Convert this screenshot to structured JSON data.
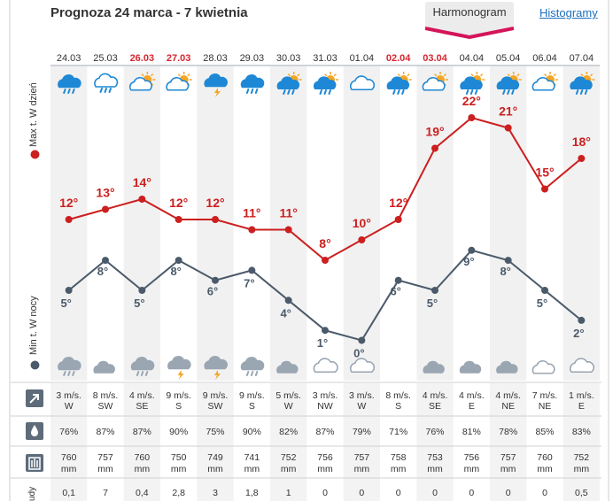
{
  "title": "Prognoza 24 marca - 7 kwietnia",
  "tabs": {
    "schedule": "Harmonogram",
    "histogram": "Histogramy"
  },
  "labels": {
    "max_day": "Max t. W dzień",
    "min_night": "Min t. W nocy",
    "precip_partial": "udy"
  },
  "colors": {
    "max": "#cc1f1f",
    "min": "#4b5a6a",
    "weekend": "#d6262f",
    "icon_blue": "#1e88d6",
    "icon_grey": "#9aa6b2",
    "sun": "#f5a623"
  },
  "chart_data": {
    "type": "line",
    "x": [
      "24.03",
      "25.03",
      "26.03",
      "27.03",
      "28.03",
      "29.03",
      "30.03",
      "31.03",
      "01.04",
      "02.04",
      "03.04",
      "04.04",
      "05.04",
      "06.04",
      "07.04"
    ],
    "weekend_dates": [
      "26.03",
      "27.03",
      "02.04",
      "03.04"
    ],
    "series": [
      {
        "name": "Max t. W dzień",
        "values": [
          12,
          13,
          14,
          12,
          12,
          11,
          11,
          8,
          10,
          12,
          19,
          22,
          21,
          15,
          18
        ]
      },
      {
        "name": "Min t. W nocy",
        "values": [
          5,
          8,
          5,
          8,
          6,
          7,
          4,
          1,
          0,
          6,
          5,
          9,
          8,
          5,
          2
        ]
      }
    ],
    "ylim": [
      -1,
      24
    ],
    "day_icons": [
      "cloud-rain",
      "cloud-drizzle",
      "partly-sunny",
      "partly-sunny",
      "cloud-storm",
      "cloud-rain",
      "partly-sunny-rain",
      "partly-sunny-rain",
      "cloud-outline",
      "partly-sunny-rain",
      "partly-sunny",
      "partly-sunny-rain",
      "partly-sunny-rain",
      "partly-sunny",
      "partly-sunny-rain"
    ],
    "night_icons": [
      "cloud-rain-night",
      "moon-cloud",
      "cloud-rain-night",
      "cloud-storm-night",
      "cloud-storm-night",
      "cloud-rain-night",
      "moon-cloud",
      "cloud-outline-night",
      "cloud-outline-night",
      "moon",
      "moon-cloud",
      "moon-cloud",
      "moon-cloud",
      "moon-cloud-outline",
      "cloud-outline-night"
    ],
    "wind_speed": [
      "3 m/s.",
      "8 m/s.",
      "4 m/s.",
      "9 m/s.",
      "9 m/s.",
      "9 m/s.",
      "5 m/s.",
      "3 m/s.",
      "3 m/s.",
      "8 m/s.",
      "4 m/s.",
      "4 m/s.",
      "4 m/s.",
      "7 m/s.",
      "1 m/s."
    ],
    "wind_dir": [
      "W",
      "SW",
      "SE",
      "S",
      "SW",
      "S",
      "W",
      "NW",
      "W",
      "S",
      "SE",
      "E",
      "NE",
      "NE",
      "E"
    ],
    "humidity": [
      "76%",
      "87%",
      "87%",
      "90%",
      "75%",
      "90%",
      "82%",
      "87%",
      "79%",
      "71%",
      "76%",
      "81%",
      "78%",
      "85%",
      "83%"
    ],
    "pressure": [
      "760",
      "757",
      "760",
      "750",
      "749",
      "741",
      "752",
      "756",
      "757",
      "758",
      "753",
      "756",
      "757",
      "760",
      "752"
    ],
    "pressure_unit": "mm",
    "precip": [
      "0,1",
      "7",
      "0,4",
      "2,8",
      "3",
      "1,8",
      "1",
      "0",
      "0",
      "0",
      "0",
      "0",
      "0",
      "0",
      "0,5"
    ]
  }
}
